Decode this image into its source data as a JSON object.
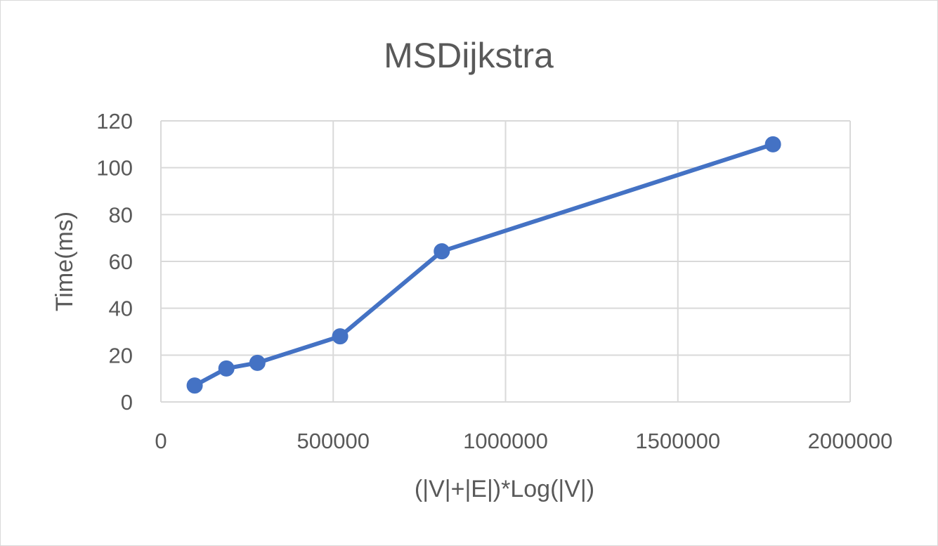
{
  "chart_data": {
    "type": "line",
    "title": "MSDijkstra",
    "xlabel": "(|V|+|E|)*Log(|V|)",
    "ylabel": "Time(ms)",
    "xlim": [
      0,
      2000000
    ],
    "ylim": [
      0,
      120
    ],
    "x_ticks": [
      0,
      500000,
      1000000,
      1500000,
      2000000
    ],
    "y_ticks": [
      0,
      20,
      40,
      60,
      80,
      100,
      120
    ],
    "x_tick_labels": [
      "0",
      "500000",
      "1000000",
      "1500000",
      "2000000"
    ],
    "y_tick_labels": [
      "0",
      "20",
      "40",
      "60",
      "80",
      "100",
      "120"
    ],
    "grid": true,
    "series": [
      {
        "name": "MSDijkstra",
        "color": "#4472c4",
        "x": [
          98000,
          190000,
          280000,
          520000,
          815000,
          1776000
        ],
        "y": [
          7,
          14.3,
          16.7,
          28,
          64.3,
          110
        ]
      }
    ]
  }
}
